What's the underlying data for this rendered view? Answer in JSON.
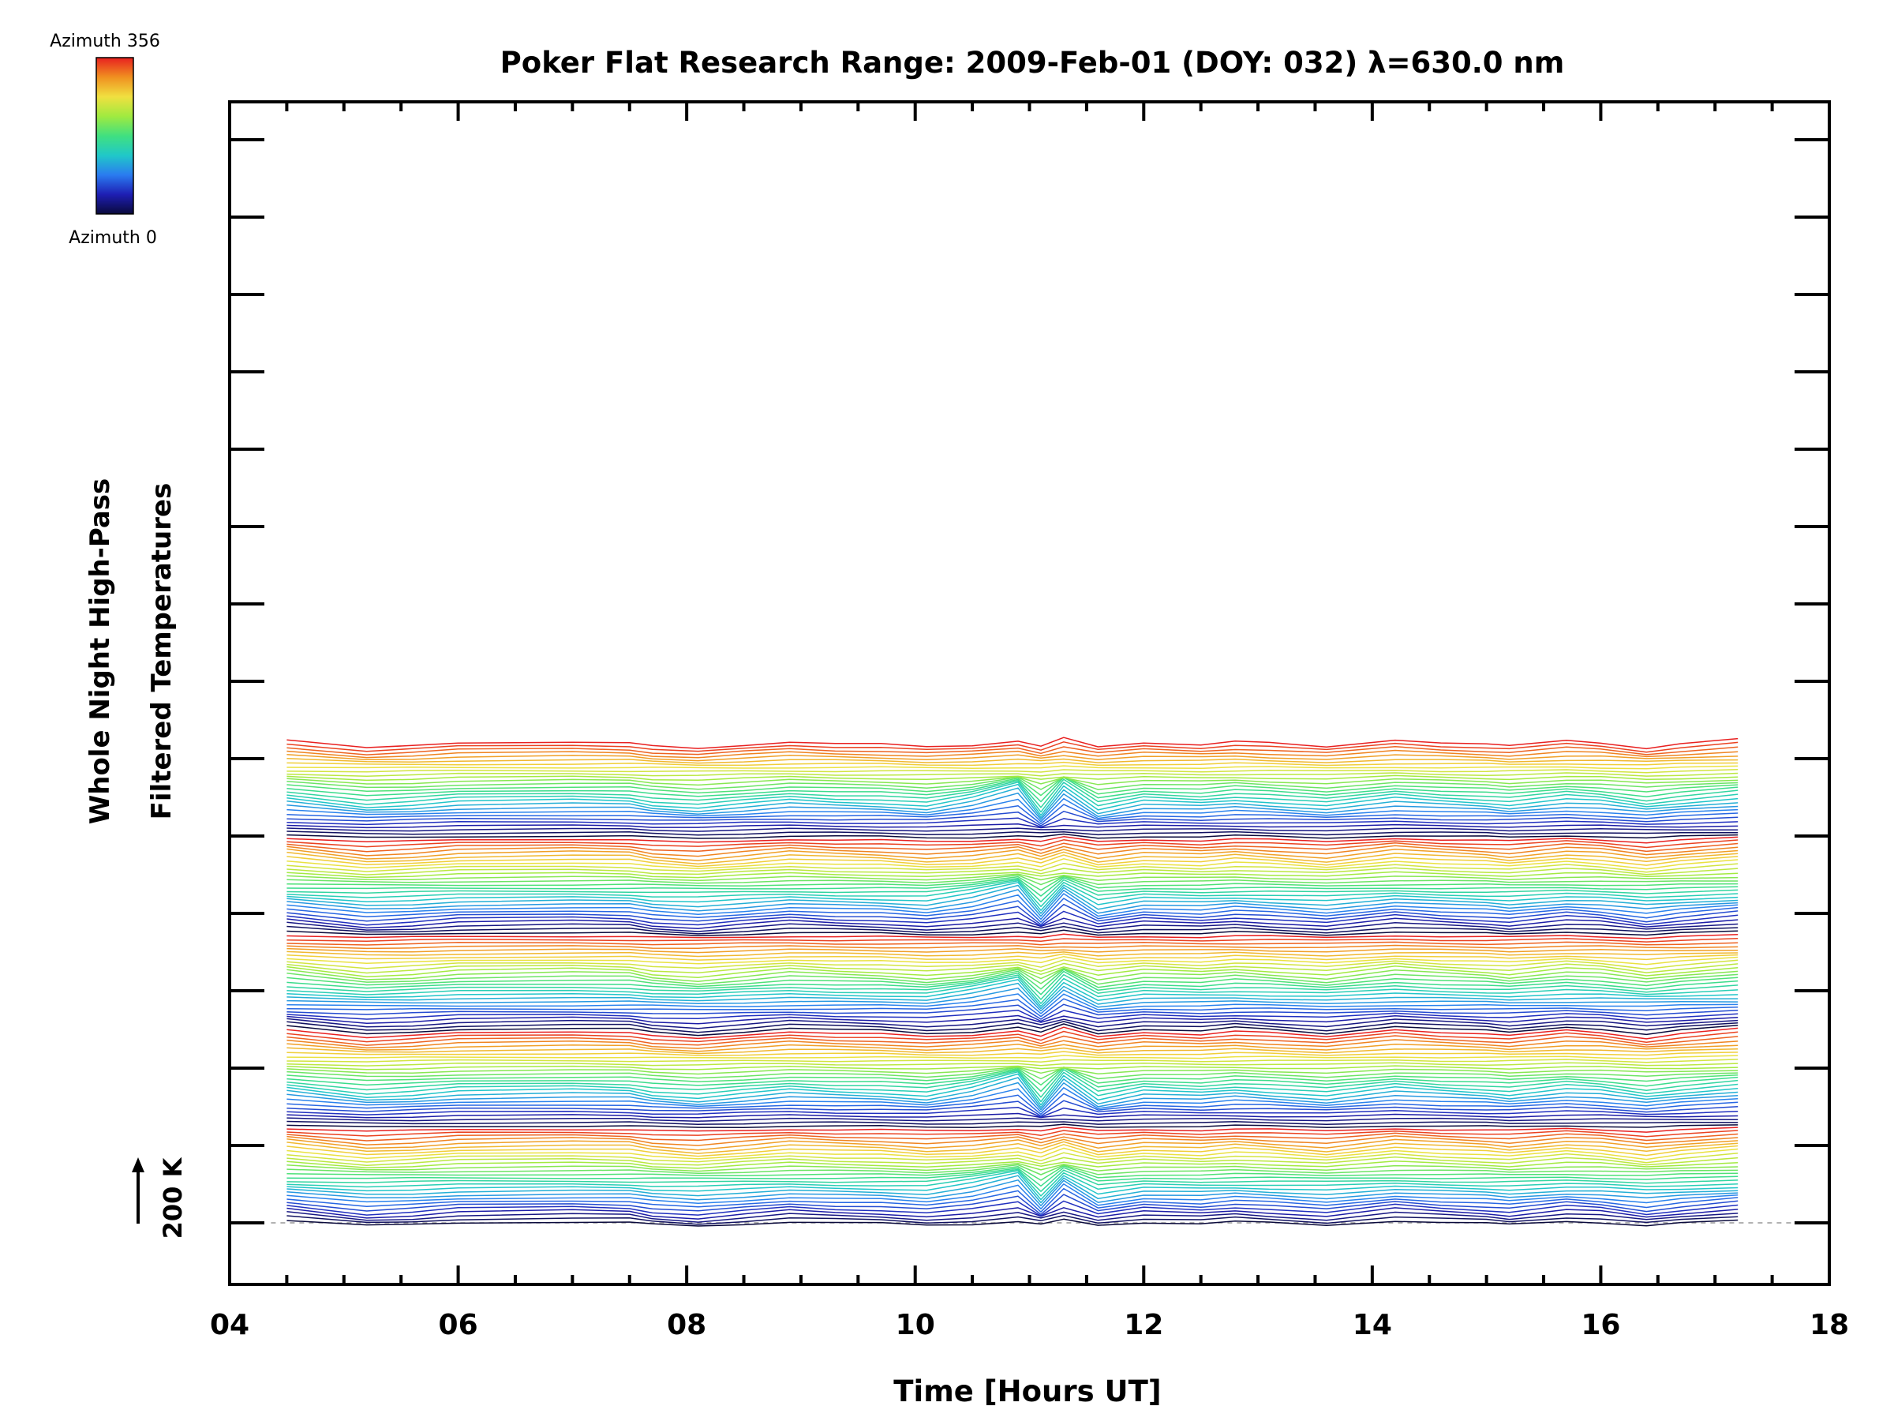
{
  "chart_data": {
    "type": "line",
    "title": "Poker Flat Research Range: 2009-Feb-01 (DOY: 032) λ=630.0 nm",
    "xlabel": "Time [Hours UT]",
    "ylabel_lines": [
      "Whole Night High-Pass",
      "Filtered Temperatures"
    ],
    "xlim": [
      4,
      18
    ],
    "x_ticks": [
      "04",
      "06",
      "08",
      "10",
      "12",
      "14",
      "16",
      "18"
    ],
    "y_ticks_count": 15,
    "scale_label": "200 K",
    "colorbar": {
      "top_label": "Azimuth 356",
      "bottom_label": "Azimuth 0",
      "azimuth_range": [
        0,
        356
      ],
      "colors": [
        "#0a0a3c",
        "#1e1eb4",
        "#2a7cf0",
        "#20c8c8",
        "#40e080",
        "#a0ea40",
        "#f0e040",
        "#f09020",
        "#e82020"
      ]
    },
    "baseline_dashed": true,
    "x": [
      4.5,
      5.2,
      5.6,
      6.0,
      7.0,
      7.5,
      7.7,
      8.1,
      8.5,
      8.9,
      9.3,
      9.7,
      10.1,
      10.5,
      10.9,
      11.1,
      11.3,
      11.6,
      12.0,
      12.5,
      12.8,
      13.1,
      13.6,
      14.2,
      14.6,
      15.0,
      15.2,
      15.7,
      16.0,
      16.4,
      16.7,
      17.2
    ],
    "series_count": 140,
    "base_profile_K": [
      8,
      -10,
      -6,
      1,
      4,
      2,
      -6,
      -12,
      -4,
      4,
      0,
      -2,
      -8,
      -4,
      6,
      -6,
      10,
      -8,
      2,
      -2,
      4,
      0,
      -8,
      8,
      2,
      -2,
      -6,
      6,
      2,
      -10,
      -2,
      8
    ],
    "disturbance_profile_K": [
      0,
      0,
      0,
      0,
      0,
      0,
      0,
      0,
      0,
      0,
      0,
      0,
      0,
      15,
      35,
      -25,
      30,
      -10,
      0,
      0,
      0,
      0,
      0,
      0,
      0,
      0,
      0,
      0,
      0,
      0,
      0,
      0
    ],
    "series_spacing_K": 9.5
  }
}
